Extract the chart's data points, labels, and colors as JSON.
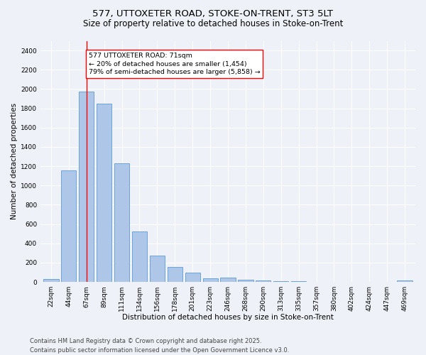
{
  "title1": "577, UTTOXETER ROAD, STOKE-ON-TRENT, ST3 5LT",
  "title2": "Size of property relative to detached houses in Stoke-on-Trent",
  "xlabel": "Distribution of detached houses by size in Stoke-on-Trent",
  "ylabel": "Number of detached properties",
  "categories": [
    "22sqm",
    "44sqm",
    "67sqm",
    "89sqm",
    "111sqm",
    "134sqm",
    "156sqm",
    "178sqm",
    "201sqm",
    "223sqm",
    "246sqm",
    "268sqm",
    "290sqm",
    "313sqm",
    "335sqm",
    "357sqm",
    "380sqm",
    "402sqm",
    "424sqm",
    "447sqm",
    "469sqm"
  ],
  "values": [
    28,
    1160,
    1970,
    1850,
    1230,
    520,
    275,
    155,
    95,
    40,
    45,
    20,
    15,
    5,
    5,
    3,
    3,
    2,
    2,
    2,
    15
  ],
  "bar_color": "#aec6e8",
  "bar_edge_color": "#5b9bd5",
  "vline_x": 2,
  "vline_color": "red",
  "annotation_text": "577 UTTOXETER ROAD: 71sqm\n← 20% of detached houses are smaller (1,454)\n79% of semi-detached houses are larger (5,858) →",
  "annotation_box_color": "white",
  "annotation_box_edge": "red",
  "ylim": [
    0,
    2500
  ],
  "yticks": [
    0,
    200,
    400,
    600,
    800,
    1000,
    1200,
    1400,
    1600,
    1800,
    2000,
    2200,
    2400
  ],
  "bg_color": "#eef2f8",
  "plot_bg_color": "#eef2f8",
  "footer1": "Contains HM Land Registry data © Crown copyright and database right 2025.",
  "footer2": "Contains public sector information licensed under the Open Government Licence v3.0.",
  "title_fontsize": 9.5,
  "subtitle_fontsize": 8.5,
  "axis_label_fontsize": 7.5,
  "tick_fontsize": 6.5,
  "annotation_fontsize": 6.8,
  "footer_fontsize": 6.0
}
